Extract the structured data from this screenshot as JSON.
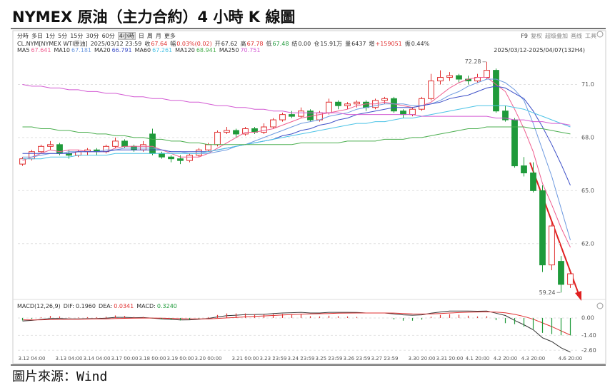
{
  "header": {
    "title": "NYMEX 原油（主力合約）4 小時 K 線圖",
    "source": "圖片來源：Wind"
  },
  "toolbar": {
    "tabs": [
      "分時",
      "多日",
      "1分",
      "5分",
      "15分",
      "30分",
      "60分",
      "4小時",
      "日",
      "周",
      "月",
      "更多"
    ],
    "active_index": 7,
    "tools": [
      "F9",
      "复权",
      "超级叠加",
      "画线",
      "工具"
    ]
  },
  "quote": {
    "symbol": "CL.NYM[NYMEX WTI原油]",
    "time": "2025/03/12 23:59",
    "range": "2025/03/12-2025/04/07(132H4)",
    "fields": [
      {
        "label": "收",
        "value": 67.64,
        "color": "#e03030"
      },
      {
        "label": "幅",
        "text": "0.03%(0.02)",
        "color": "#e03030"
      },
      {
        "label": "开",
        "value": 67.62,
        "color": "#333333"
      },
      {
        "label": "高",
        "value": 67.78,
        "color": "#e03030"
      },
      {
        "label": "低",
        "value": 67.48,
        "color": "#1f9a3a"
      },
      {
        "label": "结",
        "text": "0.00",
        "color": "#333333"
      },
      {
        "label": "仓",
        "text": "15.91万",
        "color": "#333333"
      },
      {
        "label": "量",
        "value": 6437,
        "color": "#333333"
      },
      {
        "label": "增",
        "text": "+159051",
        "color": "#e03030"
      },
      {
        "label": "振",
        "text": "0.44%",
        "color": "#333333"
      }
    ]
  },
  "chart_data": [
    {
      "type": "candlestick",
      "up_color": "#e03030",
      "down_color": "#1f9a3a",
      "grid": true,
      "ylim": [
        59.05,
        72.55
      ],
      "yticks": [
        {
          "value": 62,
          "label": "62.0"
        },
        {
          "value": 65,
          "label": "65.0"
        },
        {
          "value": 68,
          "label": "68.0"
        },
        {
          "value": 71,
          "label": "71.0"
        }
      ],
      "open": [
        66.5,
        66.8,
        67.2,
        67.5,
        67.6,
        67.1,
        67.0,
        67.2,
        67.3,
        67.2,
        67.5,
        67.8,
        67.5,
        67.3,
        68.2,
        67.1,
        66.9,
        66.8,
        66.7,
        67.0,
        67.3,
        67.6,
        68.3,
        68.4,
        68.2,
        68.5,
        68.3,
        68.6,
        69.0,
        69.3,
        69.2,
        69.5,
        69.0,
        69.4,
        70.0,
        69.8,
        69.9,
        70.0,
        69.7,
        70.1,
        70.2,
        69.5,
        69.3,
        69.6,
        70.2,
        71.2,
        71.4,
        71.5,
        71.3,
        71.2,
        71.4,
        71.8,
        69.5,
        69.0,
        66.4,
        66.0,
        65.0,
        60.8,
        61.0,
        59.7
      ],
      "high": [
        66.9,
        67.3,
        67.6,
        67.8,
        67.7,
        67.3,
        67.3,
        67.4,
        67.4,
        67.6,
        68.0,
        67.9,
        67.6,
        67.8,
        68.5,
        67.2,
        67.0,
        67.0,
        67.1,
        67.4,
        67.7,
        68.4,
        68.6,
        68.5,
        68.6,
        68.6,
        68.8,
        69.1,
        69.4,
        69.5,
        69.7,
        69.6,
        69.5,
        70.2,
        70.1,
        70.0,
        70.1,
        70.1,
        70.2,
        70.3,
        70.3,
        69.6,
        69.7,
        70.3,
        71.6,
        71.8,
        71.7,
        71.6,
        71.5,
        71.6,
        72.28,
        71.9,
        69.8,
        69.1,
        66.9,
        66.6,
        65.3,
        63.2,
        61.3,
        60.5
      ],
      "low": [
        66.4,
        66.7,
        67.1,
        67.3,
        67.0,
        66.8,
        66.9,
        67.0,
        67.0,
        67.1,
        67.4,
        67.4,
        67.2,
        67.2,
        67.0,
        66.8,
        66.6,
        66.5,
        66.6,
        66.9,
        67.2,
        67.5,
        68.2,
        68.0,
        68.1,
        68.2,
        68.2,
        68.5,
        68.9,
        69.1,
        69.1,
        68.9,
        68.9,
        69.3,
        69.6,
        69.6,
        69.7,
        69.5,
        69.6,
        69.9,
        69.4,
        69.1,
        69.2,
        69.5,
        70.1,
        71.0,
        71.2,
        71.1,
        71.0,
        71.1,
        71.3,
        69.4,
        68.9,
        66.3,
        65.8,
        64.9,
        60.4,
        60.5,
        59.24,
        59.5
      ],
      "close": [
        66.8,
        67.2,
        67.5,
        67.6,
        67.1,
        67.0,
        67.2,
        67.3,
        67.2,
        67.5,
        67.8,
        67.5,
        67.3,
        67.6,
        67.1,
        66.9,
        66.8,
        66.7,
        67.0,
        67.3,
        67.6,
        68.3,
        68.4,
        68.2,
        68.5,
        68.3,
        68.6,
        69.0,
        69.3,
        69.2,
        69.5,
        69.0,
        69.4,
        70.0,
        69.8,
        69.9,
        70.0,
        69.7,
        70.1,
        70.2,
        69.5,
        69.3,
        69.6,
        70.2,
        71.2,
        71.4,
        71.5,
        71.3,
        71.2,
        71.4,
        71.8,
        69.5,
        69.0,
        66.4,
        66.0,
        65.0,
        60.8,
        63.0,
        59.7,
        60.3
      ],
      "annotations": [
        72.28,
        59.24
      ],
      "series": [
        {
          "name": "MA5",
          "header_value": 67.641,
          "color": "#ef5d8f",
          "values": [
            66.7,
            66.9,
            67.1,
            67.3,
            67.2,
            67.3,
            67.3,
            67.2,
            67.2,
            67.2,
            67.4,
            67.5,
            67.5,
            67.5,
            67.5,
            67.3,
            67.1,
            66.9,
            66.9,
            66.9,
            67.1,
            67.4,
            67.7,
            68.0,
            68.3,
            68.3,
            68.4,
            68.5,
            68.7,
            68.9,
            69.1,
            69.2,
            69.3,
            69.4,
            69.5,
            69.6,
            69.8,
            69.9,
            69.9,
            70.0,
            69.9,
            69.8,
            69.7,
            69.8,
            70.0,
            70.4,
            70.8,
            71.1,
            71.3,
            71.4,
            71.4,
            71.0,
            70.6,
            69.6,
            68.5,
            67.2,
            65.4,
            64.2,
            62.9,
            61.8
          ]
        },
        {
          "name": "MA10",
          "header_value": 67.181,
          "color": "#6f9be0",
          "values": [
            66.9,
            66.9,
            67.0,
            67.1,
            67.1,
            67.2,
            67.2,
            67.2,
            67.2,
            67.3,
            67.3,
            67.4,
            67.4,
            67.4,
            67.4,
            67.3,
            67.2,
            67.2,
            67.1,
            67.1,
            67.1,
            67.2,
            67.3,
            67.5,
            67.6,
            67.8,
            68.0,
            68.2,
            68.4,
            68.6,
            68.8,
            68.9,
            69.0,
            69.2,
            69.3,
            69.4,
            69.6,
            69.7,
            69.8,
            69.9,
            69.9,
            69.9,
            69.8,
            69.8,
            69.9,
            70.1,
            70.4,
            70.6,
            70.9,
            71.1,
            71.3,
            71.3,
            71.1,
            70.7,
            70.1,
            68.8,
            67.3,
            65.8,
            64.0,
            62.2
          ]
        },
        {
          "name": "MA20",
          "header_value": 66.791,
          "color": "#3f51c8",
          "values": [
            67.1,
            67.1,
            67.1,
            67.1,
            67.1,
            67.1,
            67.2,
            67.2,
            67.2,
            67.2,
            67.3,
            67.3,
            67.3,
            67.3,
            67.3,
            67.3,
            67.2,
            67.2,
            67.2,
            67.2,
            67.2,
            67.3,
            67.4,
            67.5,
            67.6,
            67.7,
            67.8,
            67.9,
            68.1,
            68.2,
            68.4,
            68.5,
            68.7,
            68.8,
            69.0,
            69.1,
            69.3,
            69.4,
            69.5,
            69.6,
            69.7,
            69.7,
            69.7,
            69.8,
            69.9,
            70.0,
            70.2,
            70.3,
            70.4,
            70.6,
            70.8,
            70.9,
            70.8,
            70.5,
            70.2,
            69.5,
            68.6,
            67.6,
            66.5,
            65.3
          ]
        },
        {
          "name": "MA60",
          "header_value": 67.261,
          "color": "#4cc3e6",
          "values": [
            66.8,
            66.8,
            66.8,
            66.9,
            66.9,
            66.9,
            67.0,
            67.0,
            67.0,
            67.0,
            67.1,
            67.1,
            67.1,
            67.1,
            67.1,
            67.1,
            67.1,
            67.1,
            67.1,
            67.1,
            67.2,
            67.3,
            67.4,
            67.5,
            67.6,
            67.7,
            67.8,
            67.9,
            68.0,
            68.1,
            68.2,
            68.3,
            68.4,
            68.5,
            68.6,
            68.7,
            68.8,
            68.8,
            68.9,
            68.9,
            69.0,
            69.1,
            69.1,
            69.2,
            69.3,
            69.4,
            69.5,
            69.6,
            69.7,
            69.8,
            69.8,
            69.8,
            69.8,
            69.7,
            69.6,
            69.4,
            69.2,
            69.0,
            68.8,
            68.6
          ]
        },
        {
          "name": "MA120",
          "header_value": 68.941,
          "color": "#4caf50",
          "values": [
            68.6,
            68.6,
            68.5,
            68.5,
            68.4,
            68.4,
            68.3,
            68.3,
            68.2,
            68.2,
            68.1,
            68.1,
            68.0,
            68.0,
            67.9,
            67.9,
            67.8,
            67.8,
            67.7,
            67.7,
            67.6,
            67.6,
            67.6,
            67.6,
            67.6,
            67.6,
            67.6,
            67.6,
            67.6,
            67.6,
            67.7,
            67.7,
            67.7,
            67.7,
            67.7,
            67.8,
            67.8,
            67.8,
            67.8,
            67.9,
            67.9,
            67.9,
            68.0,
            68.0,
            68.1,
            68.2,
            68.3,
            68.4,
            68.5,
            68.5,
            68.6,
            68.6,
            68.6,
            68.6,
            68.6,
            68.5,
            68.5,
            68.4,
            68.3,
            68.2
          ]
        },
        {
          "name": "MA250",
          "header_value": 70.751,
          "color": "#d35bd3",
          "values": [
            71.0,
            70.9,
            70.9,
            70.8,
            70.8,
            70.7,
            70.7,
            70.6,
            70.6,
            70.5,
            70.5,
            70.4,
            70.3,
            70.3,
            70.2,
            70.2,
            70.1,
            70.1,
            70.0,
            70.0,
            69.9,
            69.8,
            69.8,
            69.7,
            69.7,
            69.6,
            69.6,
            69.5,
            69.5,
            69.4,
            69.4,
            69.4,
            69.4,
            69.4,
            69.4,
            69.3,
            69.3,
            69.3,
            69.3,
            69.3,
            69.3,
            69.3,
            69.3,
            69.2,
            69.2,
            69.2,
            69.2,
            69.2,
            69.2,
            69.2,
            69.2,
            69.1,
            69.1,
            69.0,
            69.0,
            68.9,
            68.9,
            68.8,
            68.8,
            68.7
          ]
        }
      ]
    },
    {
      "type": "macd",
      "title": "MACD(12,26,9)",
      "up_color": "#e03030",
      "down_color": "#1f9a3a",
      "grid": true,
      "ylim": [
        -3.1,
        0.57
      ],
      "yticks": [
        {
          "value": -2.6,
          "label": "-2.60"
        },
        {
          "value": -1.4,
          "label": "-1.40"
        },
        {
          "value": 0,
          "label": "0.00"
        }
      ],
      "categories": [
        null,
        "3.12 04:00",
        null,
        null,
        null,
        "3.13 04:00",
        null,
        null,
        "3.14 04:00",
        null,
        null,
        "3.17 00:00",
        null,
        null,
        "3.18 00:00",
        null,
        null,
        "3.19 00:00",
        null,
        null,
        "3.20 00:00",
        null,
        null,
        null,
        "3.21 00:00",
        null,
        null,
        "3.23 23:59",
        null,
        null,
        "3.24 23:59",
        null,
        null,
        "3.25 23:59",
        null,
        null,
        "3.26 23:59",
        null,
        null,
        "3.27 23:59",
        null,
        null,
        null,
        "3.30 20:00",
        null,
        null,
        "3.31 20:00",
        null,
        null,
        "4.1 20:00",
        null,
        null,
        "4.2 20:00",
        null,
        null,
        "4.3 20:00",
        null,
        null,
        null,
        "4.6 20:00"
      ],
      "series": [
        {
          "name": "DIF:",
          "header_value": {
            "value": 0.196,
            "label": "0.1960"
          },
          "color": "#333333",
          "values": [
            -0.25,
            -0.2,
            -0.12,
            -0.05,
            -0.05,
            -0.08,
            -0.08,
            -0.06,
            -0.05,
            -0.02,
            0.05,
            0.05,
            0.02,
            0.03,
            -0.02,
            -0.08,
            -0.12,
            -0.16,
            -0.15,
            -0.1,
            -0.04,
            0.08,
            0.18,
            0.22,
            0.27,
            0.28,
            0.3,
            0.35,
            0.4,
            0.42,
            0.45,
            0.4,
            0.4,
            0.45,
            0.45,
            0.45,
            0.44,
            0.4,
            0.4,
            0.4,
            0.33,
            0.25,
            0.22,
            0.25,
            0.38,
            0.48,
            0.55,
            0.56,
            0.55,
            0.54,
            0.56,
            0.38,
            0.2,
            -0.2,
            -0.55,
            -0.95,
            -1.6,
            -1.9,
            -2.4,
            -2.75
          ]
        },
        {
          "name": "DEA:",
          "header_value": {
            "value": 0.0341,
            "label": "0.0341"
          },
          "color": "#e03030",
          "values": [
            -0.15,
            -0.16,
            -0.15,
            -0.13,
            -0.11,
            -0.1,
            -0.1,
            -0.09,
            -0.08,
            -0.07,
            -0.05,
            -0.03,
            -0.02,
            -0.01,
            -0.01,
            -0.02,
            -0.04,
            -0.06,
            -0.08,
            -0.08,
            -0.07,
            -0.04,
            0.0,
            0.04,
            0.09,
            0.13,
            0.16,
            0.2,
            0.24,
            0.27,
            0.31,
            0.33,
            0.34,
            0.36,
            0.38,
            0.39,
            0.4,
            0.4,
            0.4,
            0.4,
            0.39,
            0.36,
            0.33,
            0.32,
            0.33,
            0.36,
            0.4,
            0.43,
            0.46,
            0.48,
            0.49,
            0.47,
            0.41,
            0.29,
            0.12,
            -0.1,
            -0.4,
            -0.7,
            -1.04,
            -1.38
          ]
        },
        {
          "name": "MACD:",
          "header_value": {
            "value": 0.324,
            "label": "0.3240"
          },
          "color": "#1f9a3a",
          "bars": true,
          "values": [
            -0.2,
            -0.08,
            0.06,
            0.16,
            0.12,
            0.04,
            0.04,
            0.06,
            0.06,
            0.1,
            0.2,
            0.16,
            0.08,
            0.08,
            -0.02,
            -0.12,
            -0.16,
            -0.2,
            -0.14,
            -0.04,
            0.06,
            0.24,
            0.36,
            0.36,
            0.36,
            0.3,
            0.28,
            0.3,
            0.32,
            0.3,
            0.28,
            0.14,
            0.12,
            0.18,
            0.14,
            0.12,
            0.08,
            0.0,
            0.0,
            0.0,
            -0.12,
            -0.22,
            -0.22,
            -0.14,
            0.1,
            0.24,
            0.3,
            0.26,
            0.18,
            0.12,
            0.14,
            -0.18,
            -0.42,
            -0.5,
            -0.7,
            -0.9,
            -1.2,
            -1.3,
            -1.4,
            -1.4
          ]
        }
      ]
    }
  ]
}
